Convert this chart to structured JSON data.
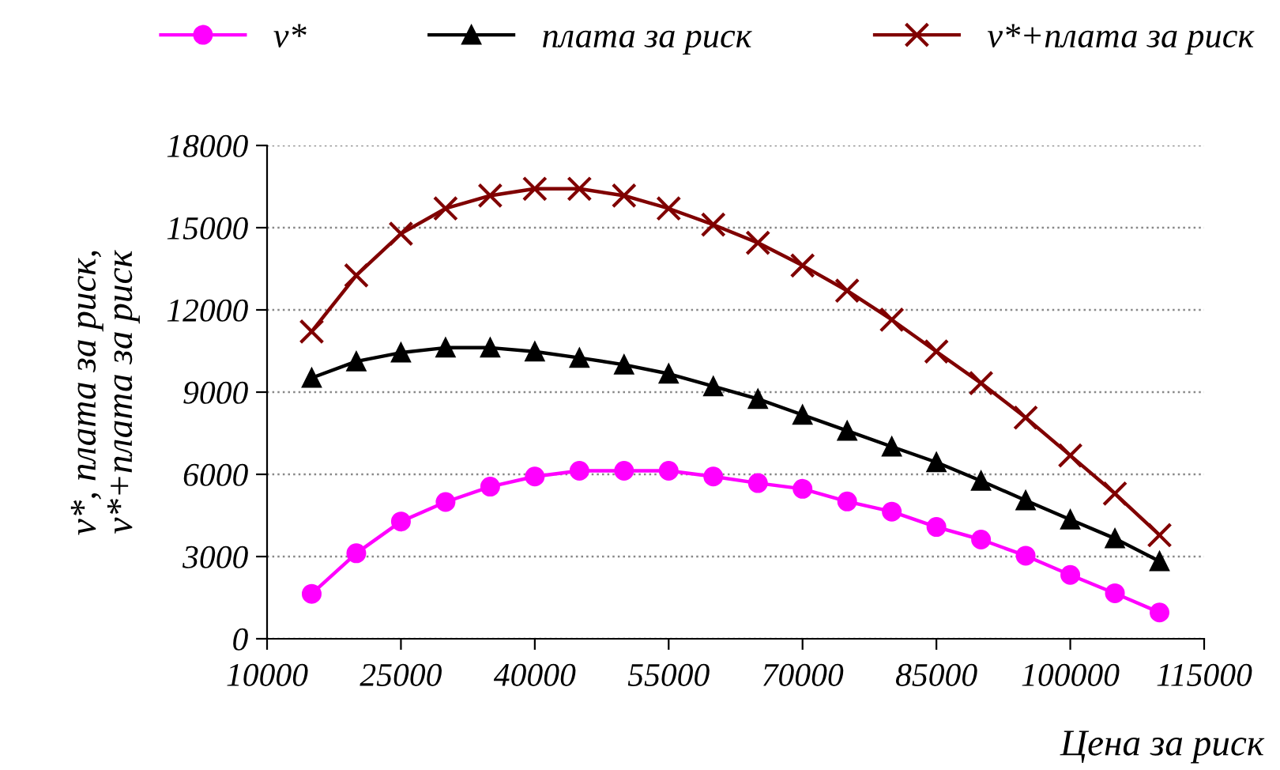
{
  "chart_data": {
    "type": "line",
    "xlabel": "Цена за риск",
    "ylabel": "v*, плата за риск,\nv*+плата за риск",
    "x": [
      15000,
      20000,
      25000,
      30000,
      35000,
      40000,
      45000,
      50000,
      55000,
      60000,
      65000,
      70000,
      75000,
      80000,
      85000,
      90000,
      95000,
      100000,
      105000,
      110000
    ],
    "series": [
      {
        "name": "v*",
        "color": "#ff00ff",
        "marker": "circle",
        "values": [
          1640,
          3120,
          4280,
          4990,
          5550,
          5920,
          6130,
          6130,
          6130,
          5920,
          5680,
          5470,
          5010,
          4640,
          4080,
          3620,
          3030,
          2330,
          1660,
          960
        ]
      },
      {
        "name": "плата за риск",
        "color": "#000000",
        "marker": "triangle",
        "values": [
          9520,
          10120,
          10440,
          10620,
          10620,
          10480,
          10250,
          10000,
          9670,
          9210,
          8750,
          8170,
          7590,
          7010,
          6440,
          5760,
          5050,
          4350,
          3660,
          2830
        ]
      },
      {
        "name": "v*+плата за риск",
        "color": "#800000",
        "marker": "cross",
        "values": [
          11210,
          13260,
          14780,
          15700,
          16170,
          16420,
          16420,
          16170,
          15700,
          15110,
          14450,
          13620,
          12700,
          11640,
          10480,
          9330,
          8070,
          6690,
          5300,
          3780
        ]
      }
    ],
    "xlim": [
      10000,
      115000
    ],
    "xticks": [
      10000,
      25000,
      40000,
      55000,
      70000,
      85000,
      100000,
      115000
    ],
    "ylim": [
      0,
      18000
    ],
    "yticks": [
      0,
      3000,
      6000,
      9000,
      12000,
      15000,
      18000
    ],
    "grid": "y",
    "legend": "top",
    "line_style": "solid"
  }
}
